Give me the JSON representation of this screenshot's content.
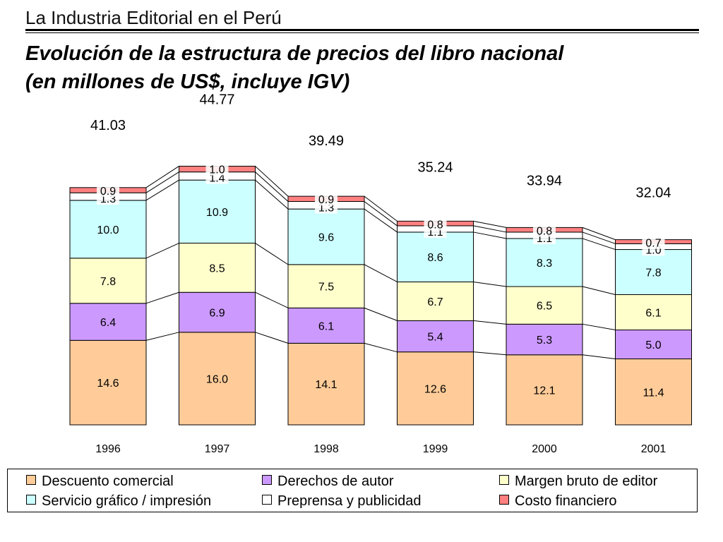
{
  "header": {
    "title": "La Industria Editorial en el Perú"
  },
  "chart_data": {
    "type": "bar",
    "stacked": true,
    "title": "Evolución de la estructura de precios del libro nacional",
    "subtitle": "(en millones de US$, incluye IGV)",
    "categories": [
      "1996",
      "1997",
      "1998",
      "1999",
      "2000",
      "2001"
    ],
    "totals": [
      "41.03",
      "44.77",
      "39.49",
      "35.24",
      "33.94",
      "32.04"
    ],
    "series": [
      {
        "name": "Descuento comercial",
        "color": "#ffcc99",
        "values": [
          14.6,
          16.0,
          14.1,
          12.6,
          12.1,
          11.4
        ],
        "labels": [
          "14.6",
          "16.0",
          "14.1",
          "12.6",
          "12.1",
          "11.4"
        ]
      },
      {
        "name": "Derechos de autor",
        "color": "#cc99ff",
        "values": [
          6.4,
          6.9,
          6.1,
          5.4,
          5.3,
          5.0
        ],
        "labels": [
          "6.4",
          "6.9",
          "6.1",
          "5.4",
          "5.3",
          "5.0"
        ]
      },
      {
        "name": "Margen bruto de editor",
        "color": "#ffffcc",
        "values": [
          7.8,
          8.5,
          7.5,
          6.7,
          6.5,
          6.1
        ],
        "labels": [
          "7.8",
          "8.5",
          "7.5",
          "6.7",
          "6.5",
          "6.1"
        ]
      },
      {
        "name": "Servicio gráfico / impresión",
        "color": "#ccffff",
        "values": [
          10.0,
          10.9,
          9.6,
          8.6,
          8.3,
          7.8
        ],
        "labels": [
          "10.0",
          "10.9",
          "9.6",
          "8.6",
          "8.3",
          "7.8"
        ]
      },
      {
        "name": "Preprensa y publicidad",
        "color": "#ffffff",
        "values": [
          1.3,
          1.4,
          1.3,
          1.1,
          1.1,
          1.0
        ],
        "labels": [
          "1.3",
          "1.4",
          "1.3",
          "1.1",
          "1.1",
          "1.0"
        ]
      },
      {
        "name": "Costo financiero",
        "color": "#ff8080",
        "values": [
          0.9,
          1.0,
          0.9,
          0.8,
          0.8,
          0.7
        ],
        "labels": [
          "0.9",
          "1.0",
          "0.9",
          "0.8",
          "0.8",
          "0.7"
        ]
      }
    ],
    "ylim": [
      0,
      46
    ],
    "grid": false,
    "legend_position": "bottom"
  }
}
